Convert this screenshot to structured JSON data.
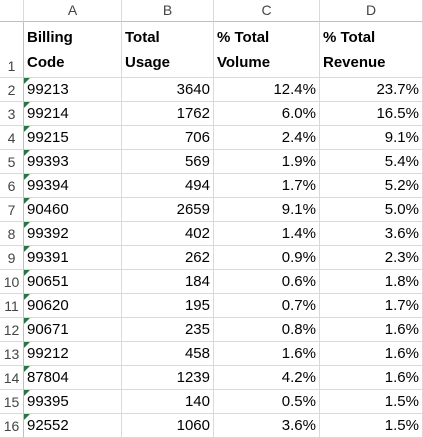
{
  "sheet": {
    "columns": [
      "A",
      "B",
      "C",
      "D"
    ],
    "row_numbers": [
      "1",
      "2",
      "3",
      "4",
      "5",
      "6",
      "7",
      "8",
      "9",
      "10",
      "11",
      "12",
      "13",
      "14",
      "15",
      "16"
    ],
    "header": [
      [
        "Billing",
        "Code"
      ],
      [
        "Total",
        "Usage"
      ],
      [
        "% Total",
        "Volume"
      ],
      [
        "% Total",
        "Revenue"
      ]
    ],
    "rows": [
      [
        "99213",
        "3640",
        "12.4%",
        "23.7%"
      ],
      [
        "99214",
        "1762",
        "6.0%",
        "16.5%"
      ],
      [
        "99215",
        "706",
        "2.4%",
        "9.1%"
      ],
      [
        "99393",
        "569",
        "1.9%",
        "5.4%"
      ],
      [
        "99394",
        "494",
        "1.7%",
        "5.2%"
      ],
      [
        "90460",
        "2659",
        "9.1%",
        "5.0%"
      ],
      [
        "99392",
        "402",
        "1.4%",
        "3.6%"
      ],
      [
        "99391",
        "262",
        "0.9%",
        "2.3%"
      ],
      [
        "90651",
        "184",
        "0.6%",
        "1.8%"
      ],
      [
        "90620",
        "195",
        "0.7%",
        "1.7%"
      ],
      [
        "90671",
        "235",
        "0.8%",
        "1.6%"
      ],
      [
        "99212",
        "458",
        "1.6%",
        "1.6%"
      ],
      [
        "87804",
        "1239",
        "4.2%",
        "1.6%"
      ],
      [
        "99395",
        "140",
        "0.5%",
        "1.5%"
      ],
      [
        "92552",
        "1060",
        "3.6%",
        "1.5%"
      ]
    ]
  }
}
